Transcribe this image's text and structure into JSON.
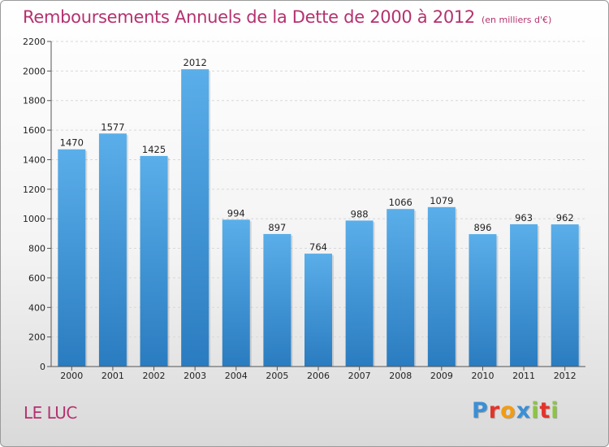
{
  "title": "Remboursements Annuels de la Dette de 2000 à 2012",
  "subtitle": "(en milliers d'€)",
  "place": "LE LUC",
  "logo": {
    "text": "Proxiti",
    "letters": [
      {
        "ch": "P",
        "color": "#3b8fd6"
      },
      {
        "ch": "r",
        "color": "#e4332a"
      },
      {
        "ch": "o",
        "color": "#f39c12"
      },
      {
        "ch": "x",
        "color": "#3b8fd6"
      },
      {
        "ch": "i",
        "color": "#8cc63f"
      },
      {
        "ch": "t",
        "color": "#e4332a"
      },
      {
        "ch": "i",
        "color": "#8cc63f"
      }
    ]
  },
  "colors": {
    "title": "#b5316f",
    "bar_top": "#5aaee9",
    "bar_bottom": "#2a7cc0"
  },
  "chart_data": {
    "type": "bar",
    "categories": [
      "2000",
      "2001",
      "2002",
      "2003",
      "2004",
      "2005",
      "2006",
      "2007",
      "2008",
      "2009",
      "2010",
      "2011",
      "2012"
    ],
    "values": [
      1470,
      1577,
      1425,
      2012,
      994,
      897,
      764,
      988,
      1066,
      1079,
      896,
      963,
      962
    ],
    "data_labels": [
      "1470",
      "1577",
      "1425",
      "2012",
      "994",
      "897",
      "764",
      "988",
      "1066",
      "1079",
      "896",
      "963",
      "962"
    ],
    "yticks": [
      0,
      200,
      400,
      600,
      800,
      1000,
      1200,
      1400,
      1600,
      1800,
      2000,
      2200
    ],
    "ylim": [
      0,
      2200
    ],
    "grid": true,
    "legend": "none"
  }
}
